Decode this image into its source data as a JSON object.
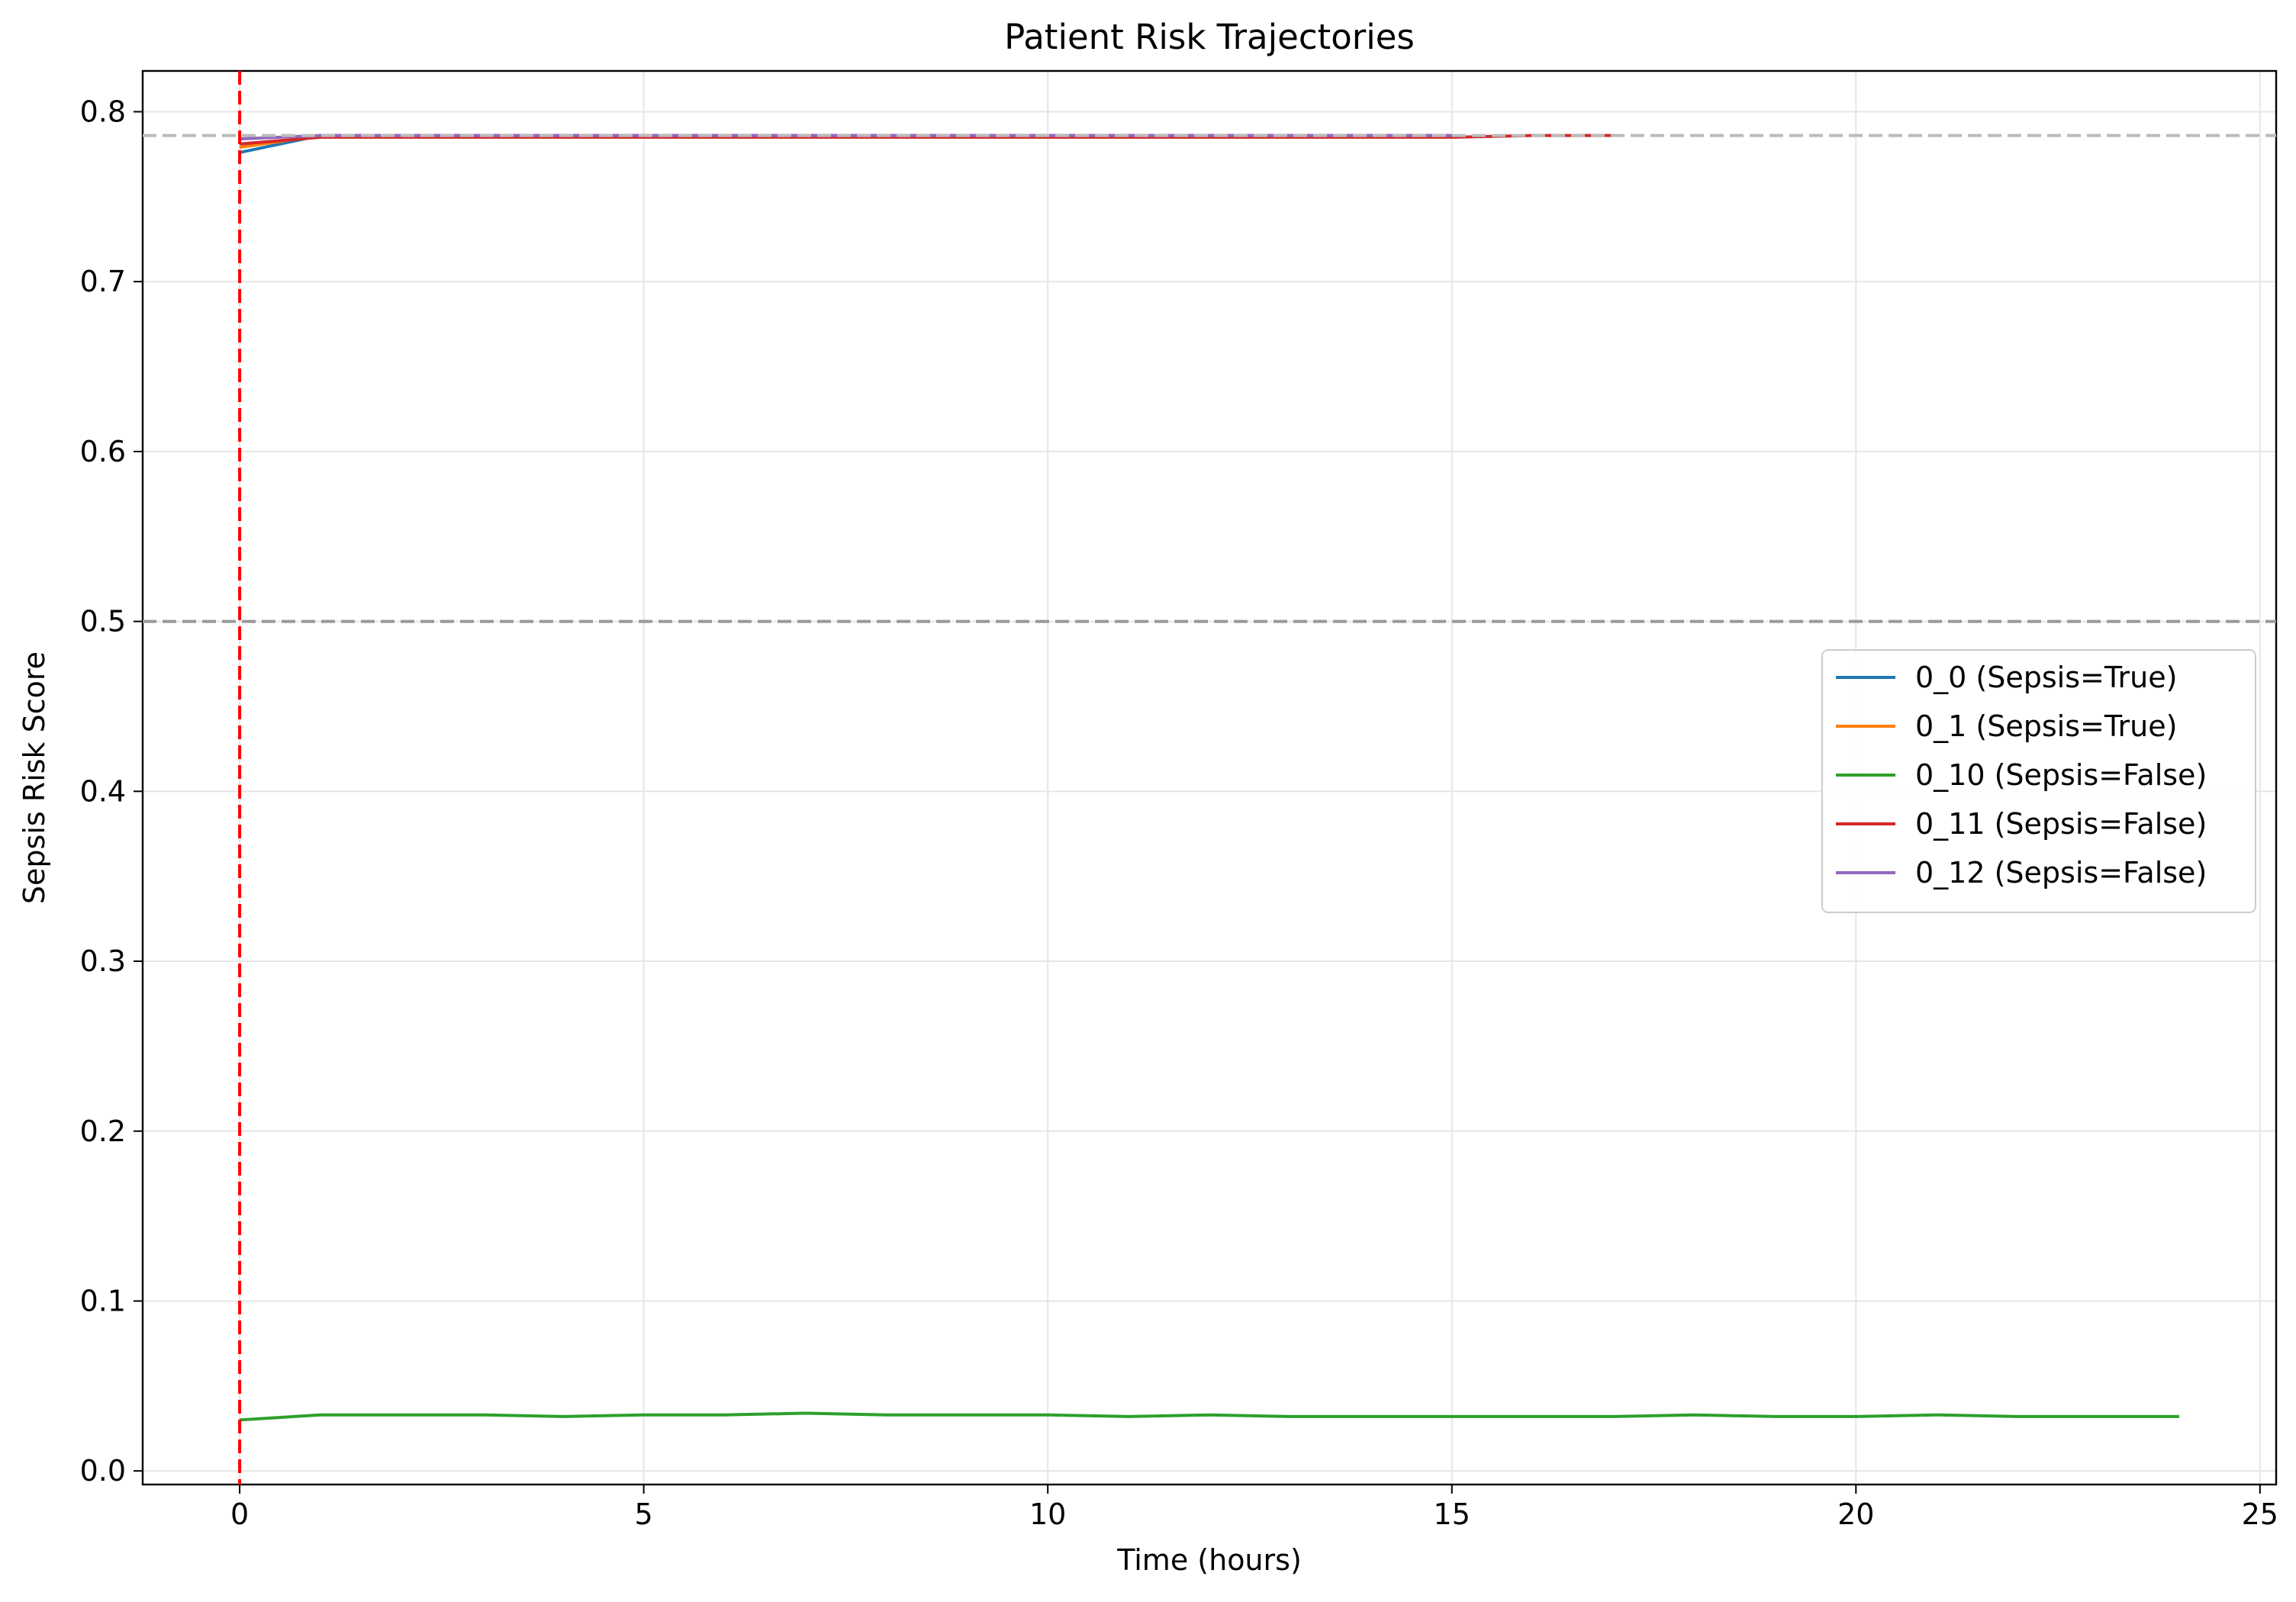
{
  "chart_data": {
    "type": "line",
    "title": "Patient Risk Trajectories",
    "xlabel": "Time (hours)",
    "ylabel": "Sepsis Risk Score",
    "xlim": [
      -1.2,
      25.2
    ],
    "ylim": [
      -0.008,
      0.824
    ],
    "xticks": [
      0,
      5,
      10,
      15,
      20,
      25
    ],
    "yticks": [
      0.0,
      0.1,
      0.2,
      0.3,
      0.4,
      0.5,
      0.6,
      0.7,
      0.8
    ],
    "grid": true,
    "legend_position": "center-right",
    "series": [
      {
        "name": "0_0 (Sepsis=True)",
        "color": "#1f77b4",
        "x": [
          0,
          1,
          2,
          3,
          4,
          5,
          6,
          7,
          8,
          9,
          10,
          11,
          12,
          13,
          14,
          15
        ],
        "y": [
          0.776,
          0.786,
          0.786,
          0.786,
          0.786,
          0.786,
          0.786,
          0.786,
          0.786,
          0.786,
          0.786,
          0.786,
          0.786,
          0.786,
          0.786,
          0.786
        ]
      },
      {
        "name": "0_1 (Sepsis=True)",
        "color": "#ff7f0e",
        "x": [
          0,
          1,
          2,
          3,
          4,
          5,
          6,
          7,
          8,
          9,
          10,
          11,
          12,
          13,
          14,
          15
        ],
        "y": [
          0.779,
          0.786,
          0.786,
          0.786,
          0.786,
          0.786,
          0.786,
          0.786,
          0.786,
          0.786,
          0.786,
          0.786,
          0.786,
          0.786,
          0.786,
          0.786
        ]
      },
      {
        "name": "0_10 (Sepsis=False)",
        "color": "#2ca02c",
        "x": [
          0,
          1,
          2,
          3,
          4,
          5,
          6,
          7,
          8,
          9,
          10,
          11,
          12,
          13,
          14,
          15,
          16,
          17,
          18,
          19,
          20,
          21,
          22,
          23,
          24
        ],
        "y": [
          0.03,
          0.033,
          0.033,
          0.033,
          0.032,
          0.033,
          0.033,
          0.034,
          0.033,
          0.033,
          0.033,
          0.032,
          0.033,
          0.032,
          0.032,
          0.032,
          0.032,
          0.032,
          0.033,
          0.032,
          0.032,
          0.033,
          0.032,
          0.032,
          0.032
        ]
      },
      {
        "name": "0_11 (Sepsis=False)",
        "color": "#d62728",
        "x": [
          0,
          1,
          2,
          3,
          4,
          5,
          6,
          7,
          8,
          9,
          10,
          11,
          12,
          13,
          14,
          15,
          16,
          17
        ],
        "y": [
          0.781,
          0.785,
          0.785,
          0.785,
          0.785,
          0.785,
          0.785,
          0.785,
          0.785,
          0.785,
          0.785,
          0.785,
          0.785,
          0.785,
          0.785,
          0.785,
          0.786,
          0.786
        ]
      },
      {
        "name": "0_12 (Sepsis=False)",
        "color": "#9467bd",
        "x": [
          0,
          1,
          2,
          3,
          4,
          5,
          6,
          7,
          8,
          9,
          10,
          11,
          12,
          13,
          14,
          15
        ],
        "y": [
          0.784,
          0.786,
          0.786,
          0.786,
          0.786,
          0.786,
          0.786,
          0.786,
          0.786,
          0.786,
          0.786,
          0.786,
          0.786,
          0.786,
          0.786,
          0.786
        ]
      }
    ],
    "reference_lines": [
      {
        "orientation": "horizontal",
        "value": 0.5,
        "color": "#999999",
        "style": "dashed"
      },
      {
        "orientation": "horizontal",
        "value": 0.786,
        "color": "#bbbbbb",
        "style": "dashed"
      },
      {
        "orientation": "vertical",
        "value": 0,
        "color": "#ff0000",
        "style": "dashed"
      }
    ]
  }
}
